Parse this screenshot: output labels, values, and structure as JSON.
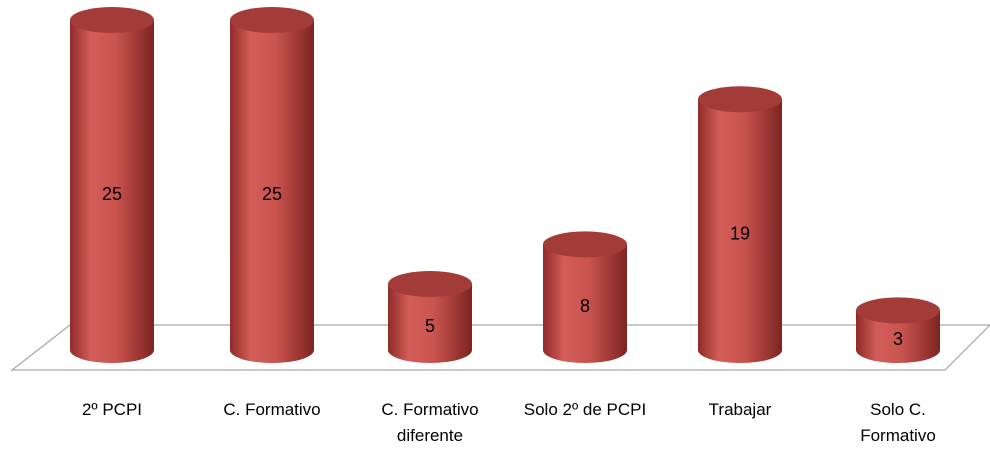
{
  "chart_data": {
    "type": "cylinder-bar",
    "categories": [
      "2º PCPI",
      "C. Formativo",
      "C. Formativo diferente",
      "Solo 2º de PCPI",
      "Trabajar",
      "Solo C. Formativo"
    ],
    "values": [
      25,
      25,
      5,
      8,
      19,
      3
    ],
    "color": "#c0504d"
  }
}
